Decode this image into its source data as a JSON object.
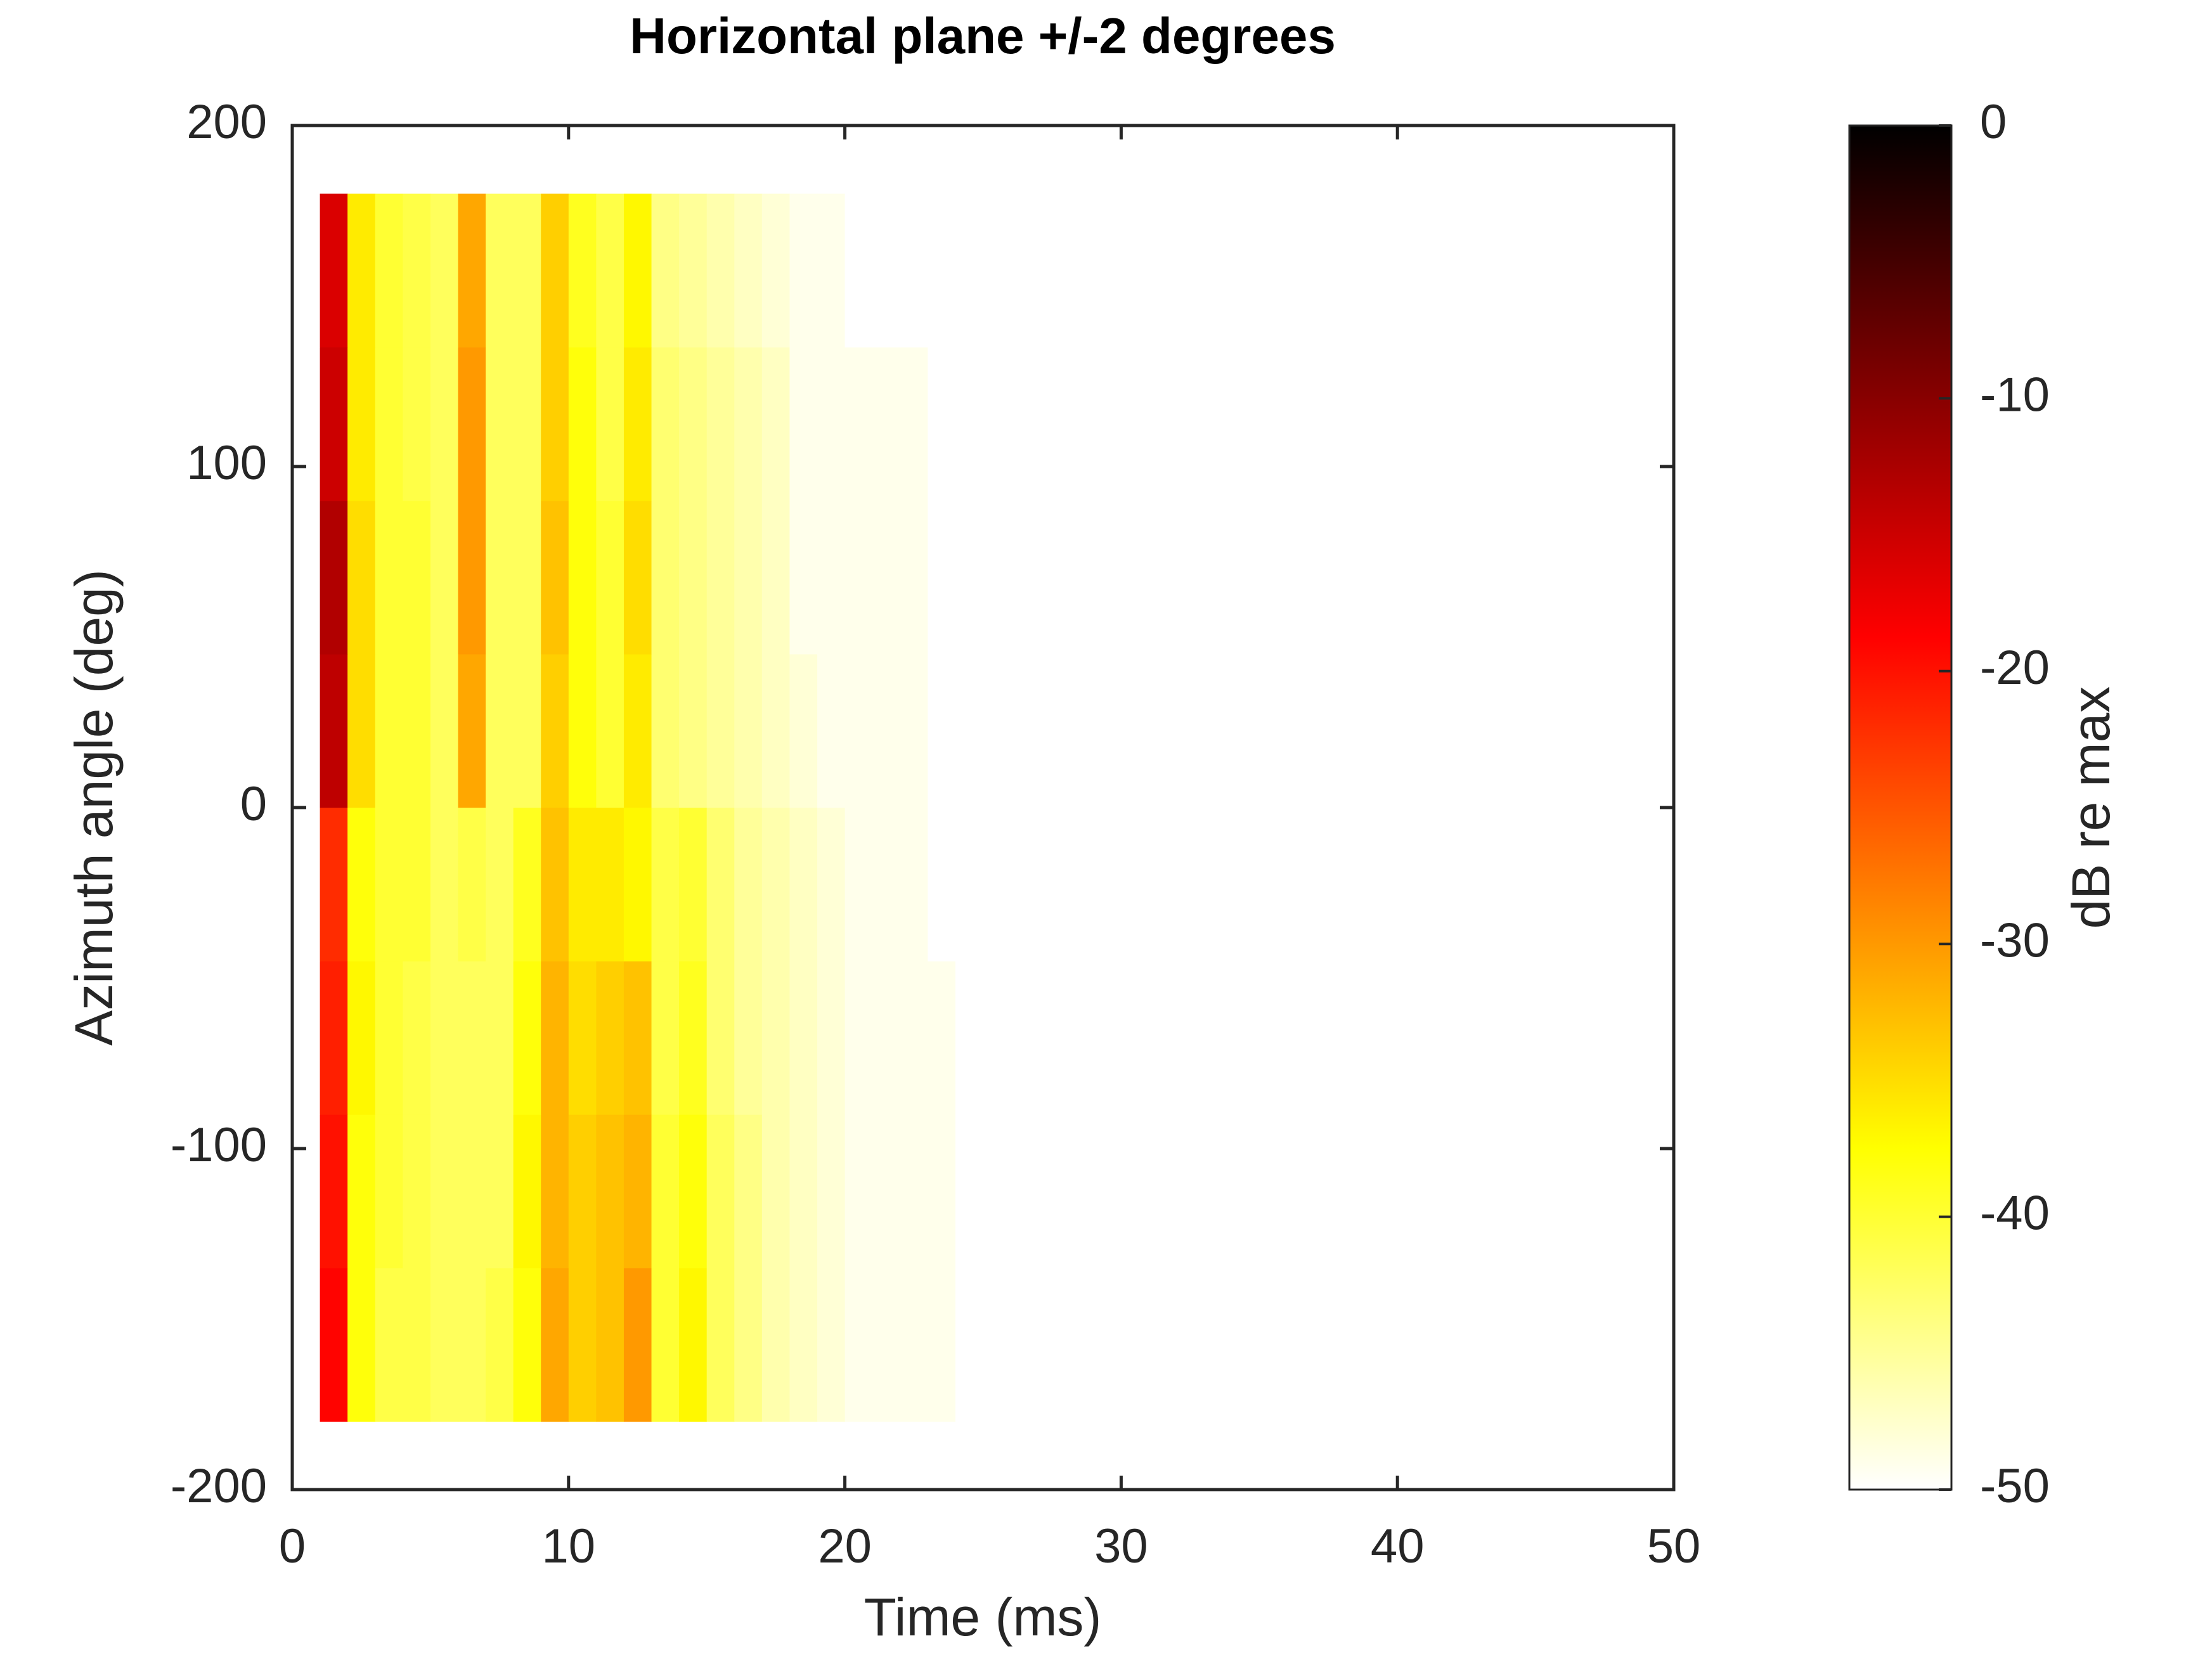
{
  "chart_data": {
    "type": "heatmap",
    "title": "Horizontal plane +/-2 degrees",
    "xlabel": "Time (ms)",
    "ylabel": "Azimuth angle (deg)",
    "xlim": [
      0,
      50
    ],
    "xticks": [
      0,
      10,
      20,
      30,
      40,
      50
    ],
    "ylim": [
      -200,
      200
    ],
    "yticks": [
      -200,
      -100,
      0,
      100,
      200
    ],
    "colormap": "hot_reversed",
    "colorbar": {
      "label": "dB re max",
      "lim": [
        -50,
        0
      ],
      "ticks": [
        -50,
        -40,
        -30,
        -20,
        -10,
        0
      ]
    },
    "x": [
      0.5,
      1.5,
      2.5,
      3.5,
      4.5,
      5.5,
      6.5,
      7.5,
      8.5,
      9.5,
      10.5,
      11.5,
      12.5,
      13.5,
      14.5,
      15.5,
      16.5,
      17.5,
      18.5,
      19.5,
      20.5,
      21.5,
      22.5,
      23.5,
      24.5
    ],
    "y": [
      -157.5,
      -112.5,
      -67.5,
      -22.5,
      22.5,
      67.5,
      112.5,
      157.5
    ],
    "z": [
      [
        -50,
        -19,
        -38,
        -41,
        -41,
        -42,
        -42,
        -41,
        -38,
        -31,
        -34,
        -33,
        -30,
        -40,
        -37,
        -42,
        -44,
        -46,
        -47,
        -48,
        -49,
        -49,
        -49,
        -49,
        -50
      ],
      [
        -50,
        -20,
        -38,
        -40,
        -41,
        -42,
        -42,
        -42,
        -37,
        -32,
        -34,
        -33,
        -32,
        -40,
        -38,
        -42,
        -44,
        -46,
        -47,
        -48,
        -49,
        -49,
        -49,
        -49,
        -50
      ],
      [
        -50,
        -21,
        -37,
        -40,
        -41,
        -42,
        -42,
        -42,
        -38,
        -32,
        -35,
        -34,
        -33,
        -41,
        -39,
        -43,
        -45,
        -46,
        -47,
        -48,
        -49,
        -49,
        -49,
        -49,
        -50
      ],
      [
        -50,
        -22,
        -38,
        -40,
        -40,
        -42,
        -41,
        -42,
        -39,
        -33,
        -36,
        -36,
        -37,
        -41,
        -40,
        -43,
        -45,
        -46,
        -47,
        -48,
        -49,
        -49,
        -49,
        -50,
        -50
      ],
      [
        -50,
        -14,
        -35,
        -40,
        -40,
        -42,
        -31,
        -42,
        -42,
        -34,
        -38,
        -40,
        -36,
        -43,
        -44,
        -45,
        -46,
        -47,
        -48,
        -49,
        -49,
        -49,
        -49,
        -50,
        -50
      ],
      [
        -50,
        -13,
        -35,
        -40,
        -40,
        -42,
        -30,
        -42,
        -42,
        -33,
        -38,
        -40,
        -35,
        -43,
        -44,
        -45,
        -46,
        -47,
        -49,
        -49,
        -49,
        -49,
        -49,
        -50,
        -50
      ],
      [
        -50,
        -15,
        -36,
        -40,
        -41,
        -42,
        -30,
        -42,
        -42,
        -34,
        -38,
        -41,
        -36,
        -43,
        -44,
        -45,
        -46,
        -47,
        -49,
        -49,
        -49,
        -49,
        -49,
        -50,
        -50
      ],
      [
        -50,
        -16,
        -36,
        -40,
        -41,
        -42,
        -31,
        -42,
        -42,
        -34,
        -39,
        -41,
        -37,
        -44,
        -45,
        -46,
        -47,
        -48,
        -49,
        -49,
        -50,
        -50,
        -50,
        -50,
        -50
      ]
    ]
  }
}
